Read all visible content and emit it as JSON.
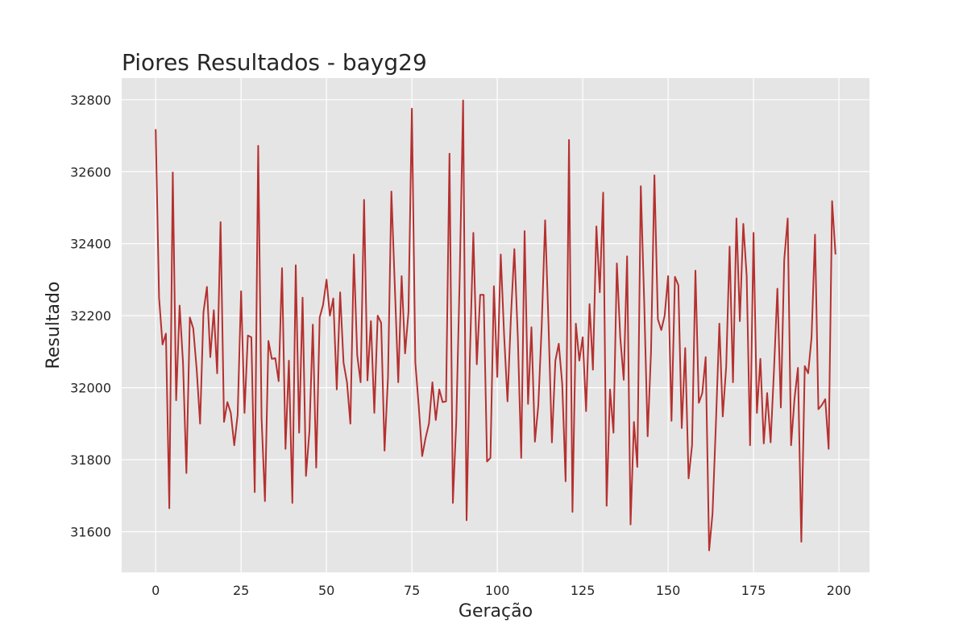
{
  "chart_data": {
    "type": "line",
    "title": "Piores Resultados - bayg29",
    "xlabel": "Geração",
    "ylabel": "Resultado",
    "xlim": [
      -9.95,
      208.95
    ],
    "ylim": [
      31487,
      32860
    ],
    "xticks": [
      0,
      25,
      50,
      75,
      100,
      125,
      150,
      175,
      200
    ],
    "yticks": [
      31600,
      31800,
      32000,
      32200,
      32400,
      32600,
      32800
    ],
    "grid": true,
    "line_color": "#b5302f",
    "background": "#e5e5e5",
    "series": [
      {
        "values": [
          32718,
          32250,
          32120,
          32150,
          31665,
          32598,
          31965,
          32228,
          32070,
          31763,
          32195,
          32165,
          32050,
          31900,
          32210,
          32280,
          32085,
          32215,
          32040,
          32460,
          31905,
          31960,
          31930,
          31840,
          31925,
          32268,
          31930,
          32145,
          32140,
          31710,
          32672,
          31915,
          31685,
          32130,
          32080,
          32082,
          32018,
          32332,
          31830,
          32075,
          31680,
          32340,
          31875,
          32250,
          31755,
          31880,
          32175,
          31778,
          32195,
          32230,
          32300,
          32200,
          32248,
          31995,
          32265,
          32070,
          32015,
          31900,
          32370,
          32090,
          32015,
          32522,
          32020,
          32185,
          31930,
          32200,
          32180,
          31825,
          32030,
          32545,
          32285,
          32015,
          32310,
          32095,
          32210,
          32775,
          32070,
          31950,
          31810,
          31860,
          31900,
          32015,
          31910,
          31995,
          31960,
          31962,
          32650,
          31680,
          31905,
          32310,
          32798,
          31632,
          32095,
          32430,
          32065,
          32258,
          32258,
          31795,
          31805,
          32282,
          32030,
          32370,
          32145,
          31962,
          32200,
          32385,
          32140,
          31805,
          32435,
          31955,
          32168,
          31850,
          31950,
          32170,
          32465,
          32175,
          31848,
          32075,
          32122,
          32010,
          31740,
          32688,
          31655,
          32178,
          32075,
          32140,
          31935,
          32232,
          32050,
          32448,
          32265,
          32542,
          31672,
          31995,
          31875,
          32345,
          32140,
          32022,
          32365,
          31620,
          31905,
          31780,
          32560,
          32240,
          31865,
          32100,
          32590,
          32190,
          32160,
          32200,
          32310,
          31908,
          32308,
          32285,
          31888,
          32110,
          31748,
          31840,
          32325,
          31958,
          31985,
          32085,
          31548,
          31650,
          31900,
          32178,
          31920,
          32060,
          32392,
          32015,
          32470,
          32185,
          32455,
          32310,
          31840,
          32430,
          31930,
          32080,
          31845,
          31985,
          31848,
          32050,
          32275,
          31945,
          32355,
          32470,
          31840,
          31968,
          32055,
          31572,
          32060,
          32040,
          32140,
          32425,
          31940,
          31952,
          31968,
          31830,
          32518,
          32370
        ]
      }
    ]
  }
}
